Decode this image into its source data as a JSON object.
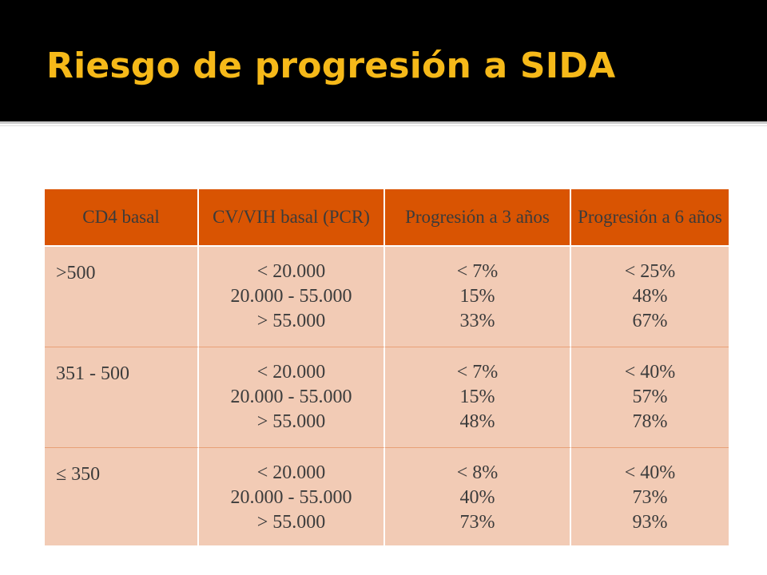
{
  "slide": {
    "title": "Riesgo de progresión a SIDA"
  },
  "table": {
    "headers": [
      "CD4 basal",
      "CV/VIH basal (PCR)",
      "Progresión a 3 años",
      "Progresión a 6 años"
    ],
    "rows": [
      {
        "cd4": ">500",
        "cv": [
          "< 20.000",
          "20.000 - 55.000",
          "> 55.000"
        ],
        "p3": [
          "< 7%",
          "15%",
          "33%"
        ],
        "p6": [
          "< 25%",
          "48%",
          "67%"
        ]
      },
      {
        "cd4": "351 - 500",
        "cv": [
          "< 20.000",
          "20.000 - 55.000",
          "> 55.000"
        ],
        "p3": [
          "< 7%",
          "15%",
          "48%"
        ],
        "p6": [
          "< 40%",
          "57%",
          "78%"
        ]
      },
      {
        "cd4": "≤ 350",
        "cv": [
          "< 20.000",
          "20.000 - 55.000",
          "> 55.000"
        ],
        "p3": [
          "< 8%",
          "40%",
          "73%"
        ],
        "p6": [
          "< 40%",
          "73%",
          "93%"
        ]
      }
    ]
  },
  "colors": {
    "title_bar": "#000000",
    "title_text": "#f6b919",
    "header_fill": "#d95402",
    "cell_fill": "#f2cbb5"
  }
}
